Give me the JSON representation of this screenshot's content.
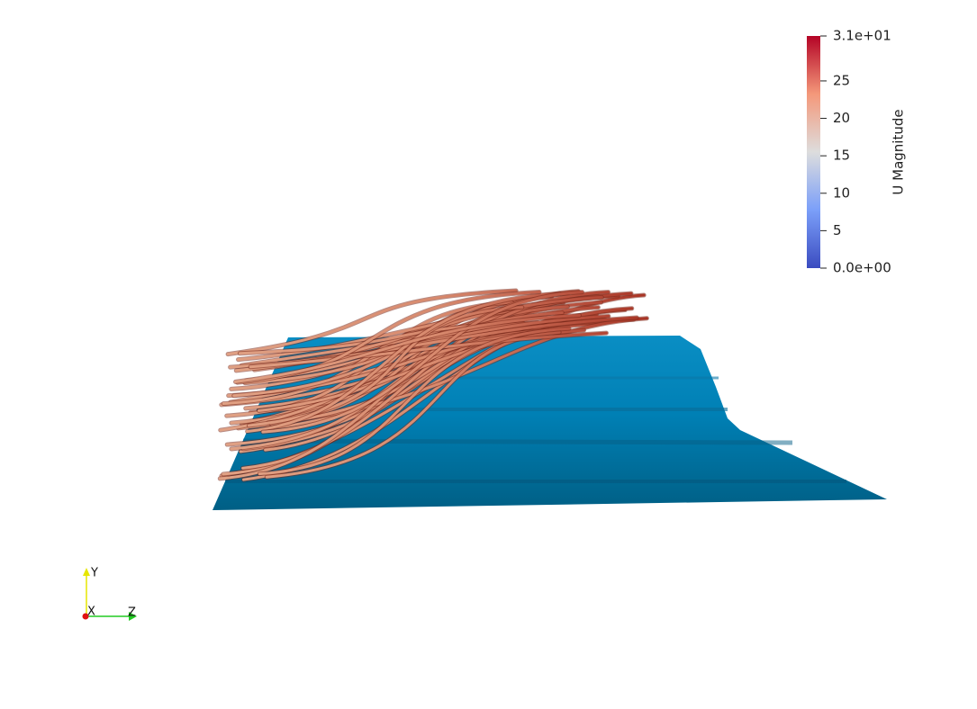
{
  "colorbar": {
    "title": "U Magnitude",
    "range": [
      0,
      31
    ],
    "ticks": [
      {
        "value": 31,
        "label": "3.1e+01"
      },
      25,
      20,
      15,
      10,
      5,
      {
        "value": 0,
        "label": "0.0e+00"
      }
    ]
  },
  "orientation_axes": {
    "x": "X",
    "y": "Y",
    "z": "Z"
  }
}
